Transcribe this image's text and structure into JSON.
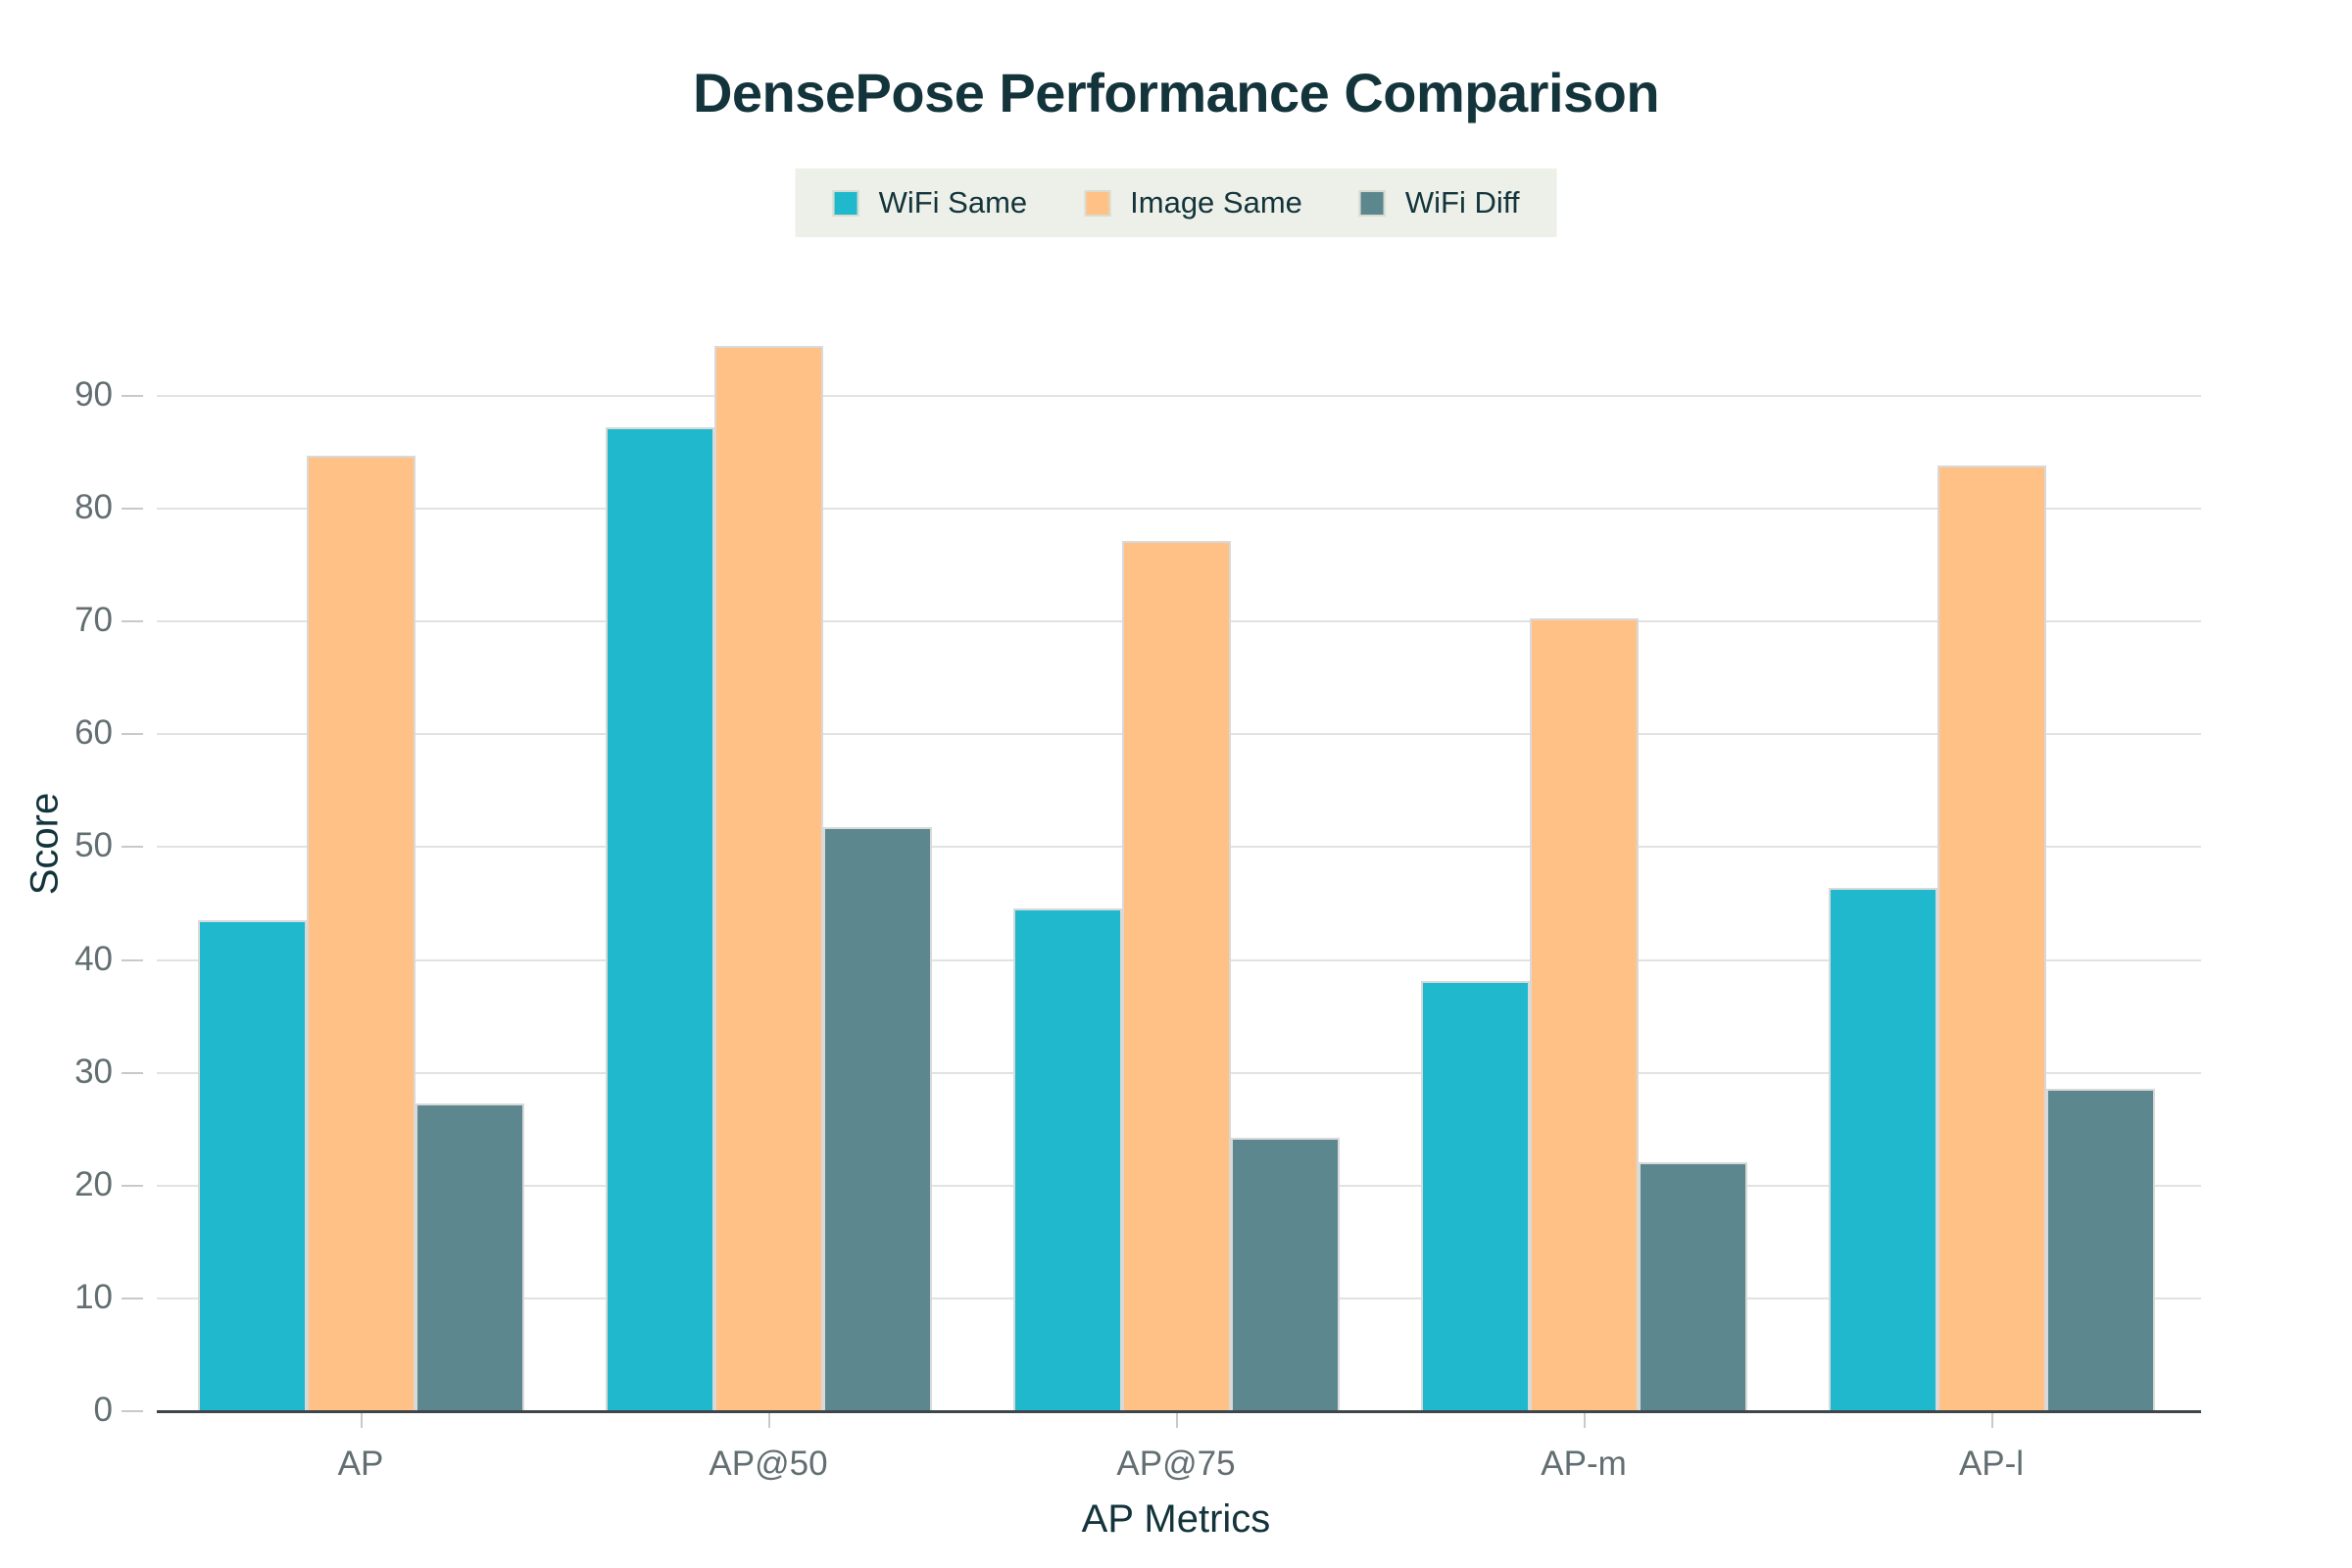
{
  "chart_data": {
    "type": "bar",
    "title": "DensePose Performance Comparison",
    "xlabel": "AP Metrics",
    "ylabel": "Score",
    "categories": [
      "AP",
      "AP@50",
      "AP@75",
      "AP-m",
      "AP-l"
    ],
    "series": [
      {
        "name": "WiFi Same",
        "color": "#1FB8CD",
        "values": [
          43.5,
          87.2,
          44.6,
          38.1,
          46.4
        ]
      },
      {
        "name": "Image Same",
        "color": "#FFC185",
        "values": [
          84.7,
          94.4,
          77.1,
          70.3,
          83.8
        ]
      },
      {
        "name": "WiFi Diff",
        "color": "#5D878F",
        "values": [
          27.3,
          51.8,
          24.2,
          22.1,
          28.6
        ]
      }
    ],
    "y_ticks": [
      0,
      10,
      20,
      30,
      40,
      50,
      60,
      70,
      80,
      90
    ],
    "ylim": [
      0,
      100.5
    ],
    "grid": true,
    "legend_position": "top-center"
  },
  "theme": {
    "background": "#FFFFFF",
    "title_color": "#13343B",
    "axis_title_color": "#13343B",
    "tick_label_color": "#626E71",
    "gridline_color": "#E2E2E2",
    "axis_line_color": "#3E464B",
    "tick_mark_color": "#C9C9C9",
    "legend_background": "#EDF0E8",
    "legend_text_color": "#13343B",
    "bar_border_color": "#D9D9D9"
  }
}
